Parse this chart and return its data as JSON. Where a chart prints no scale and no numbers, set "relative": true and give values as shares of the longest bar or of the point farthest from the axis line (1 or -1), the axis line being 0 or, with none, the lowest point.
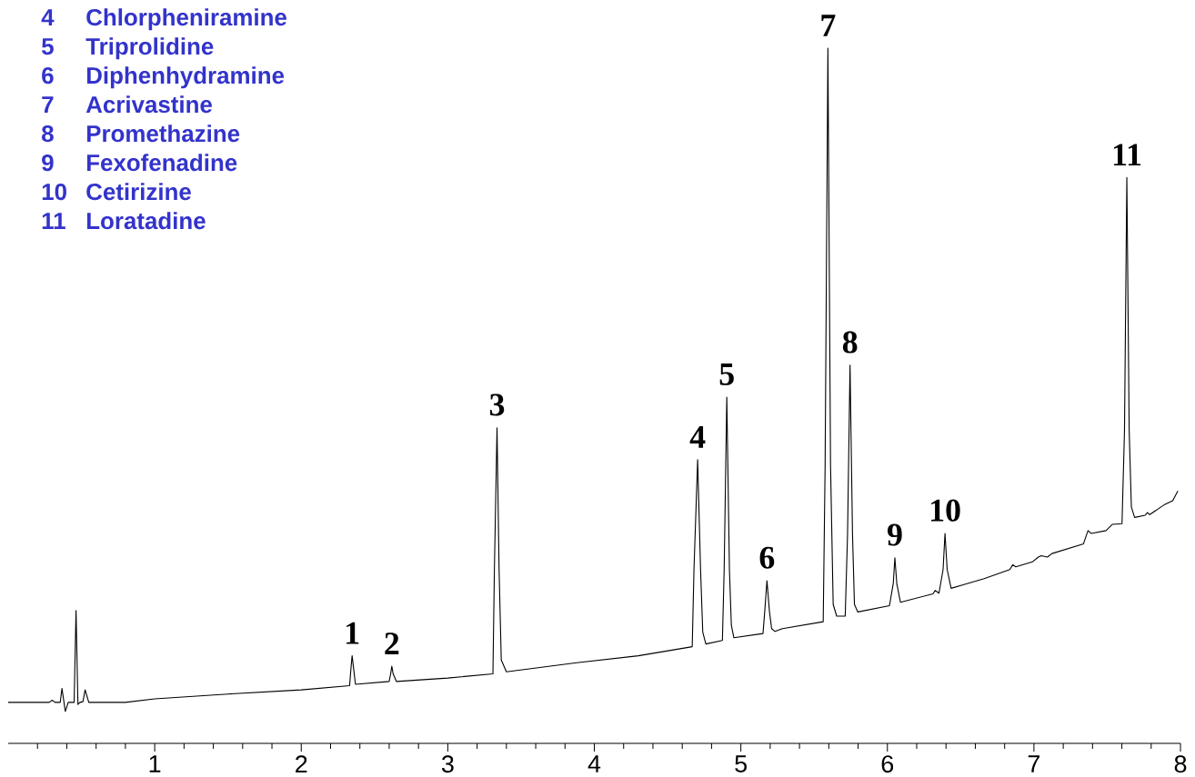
{
  "chart_data": {
    "type": "line",
    "relative": true,
    "color": "#000000",
    "xlim": [
      0,
      8
    ],
    "xticks": [
      {
        "value": 0.2,
        "label": null
      },
      {
        "value": 0.4,
        "label": null
      },
      {
        "value": 0.6,
        "label": null
      },
      {
        "value": 0.8,
        "label": null
      },
      1,
      {
        "value": 1.2,
        "label": null
      },
      {
        "value": 1.4,
        "label": null
      },
      {
        "value": 1.6,
        "label": null
      },
      {
        "value": 1.8,
        "label": null
      },
      2,
      {
        "value": 2.2,
        "label": null
      },
      {
        "value": 2.4,
        "label": null
      },
      {
        "value": 2.6,
        "label": null
      },
      {
        "value": 2.8,
        "label": null
      },
      3,
      {
        "value": 3.2,
        "label": null
      },
      {
        "value": 3.4,
        "label": null
      },
      {
        "value": 3.6,
        "label": null
      },
      {
        "value": 3.8,
        "label": null
      },
      4,
      {
        "value": 4.2,
        "label": null
      },
      {
        "value": 4.4,
        "label": null
      },
      {
        "value": 4.6,
        "label": null
      },
      {
        "value": 4.8,
        "label": null
      },
      5,
      {
        "value": 5.2,
        "label": null
      },
      {
        "value": 5.4,
        "label": null
      },
      {
        "value": 5.6,
        "label": null
      },
      {
        "value": 5.8,
        "label": null
      },
      6,
      {
        "value": 6.2,
        "label": null
      },
      {
        "value": 6.4,
        "label": null
      },
      {
        "value": 6.6,
        "label": null
      },
      {
        "value": 6.8,
        "label": null
      },
      7,
      {
        "value": 7.2,
        "label": null
      },
      {
        "value": 7.4,
        "label": null
      },
      {
        "value": 7.6,
        "label": null
      },
      {
        "value": 7.8,
        "label": null
      },
      8
    ],
    "x": [
      0.0,
      0.28,
      0.3,
      0.32,
      0.355,
      0.367,
      0.39,
      0.41,
      0.45,
      0.463,
      0.476,
      0.49,
      0.51,
      0.525,
      0.55,
      0.8,
      1.0,
      1.5,
      2.0,
      2.33,
      2.34,
      2.347,
      2.356,
      2.37,
      2.6,
      2.61,
      2.618,
      2.627,
      2.65,
      3.0,
      3.308,
      3.318,
      3.336,
      3.35,
      3.365,
      3.4,
      3.88,
      4.3,
      4.668,
      4.68,
      4.705,
      4.725,
      4.74,
      4.761,
      4.874,
      4.886,
      4.904,
      4.922,
      4.935,
      4.952,
      5.151,
      5.163,
      5.178,
      5.195,
      5.21,
      5.233,
      5.284,
      5.562,
      5.575,
      5.594,
      5.612,
      5.63,
      5.654,
      5.712,
      5.728,
      5.745,
      5.762,
      5.775,
      5.798,
      6.014,
      6.04,
      6.051,
      6.064,
      6.089,
      6.311,
      6.326,
      6.352,
      6.38,
      6.393,
      6.408,
      6.435,
      6.517,
      6.66,
      6.835,
      6.856,
      6.876,
      6.989,
      7.03,
      7.05,
      7.092,
      7.123,
      7.338,
      7.369,
      7.39,
      7.492,
      7.534,
      7.601,
      7.618,
      7.634,
      7.65,
      7.665,
      7.687,
      7.759,
      7.774,
      7.79,
      7.888,
      7.947,
      7.982
    ],
    "values": [
      0.059,
      0.059,
      0.062,
      0.059,
      0.059,
      0.079,
      0.046,
      0.059,
      0.059,
      0.191,
      0.056,
      0.059,
      0.06,
      0.077,
      0.059,
      0.059,
      0.064,
      0.071,
      0.077,
      0.083,
      0.11,
      0.126,
      0.11,
      0.085,
      0.089,
      0.1,
      0.111,
      0.1,
      0.089,
      0.094,
      0.1,
      0.25,
      0.454,
      0.25,
      0.12,
      0.103,
      0.116,
      0.126,
      0.139,
      0.25,
      0.408,
      0.25,
      0.16,
      0.143,
      0.148,
      0.25,
      0.498,
      0.25,
      0.17,
      0.152,
      0.158,
      0.19,
      0.234,
      0.19,
      0.165,
      0.161,
      0.165,
      0.175,
      0.4,
      1.0,
      0.4,
      0.2,
      0.183,
      0.183,
      0.3,
      0.544,
      0.3,
      0.2,
      0.189,
      0.198,
      0.23,
      0.267,
      0.23,
      0.203,
      0.215,
      0.22,
      0.216,
      0.25,
      0.302,
      0.25,
      0.223,
      0.228,
      0.237,
      0.25,
      0.257,
      0.254,
      0.261,
      0.268,
      0.27,
      0.268,
      0.273,
      0.287,
      0.306,
      0.302,
      0.306,
      0.315,
      0.316,
      0.45,
      0.814,
      0.45,
      0.34,
      0.325,
      0.328,
      0.332,
      0.329,
      0.343,
      0.349,
      0.363
    ],
    "annotations": [
      {
        "text": "1",
        "x": 2.347,
        "y": 0.126
      },
      {
        "text": "2",
        "x": 2.618,
        "y": 0.111
      },
      {
        "text": "3",
        "x": 3.336,
        "y": 0.454
      },
      {
        "text": "4",
        "x": 4.705,
        "y": 0.408
      },
      {
        "text": "5",
        "x": 4.904,
        "y": 0.498
      },
      {
        "text": "6",
        "x": 5.178,
        "y": 0.234
      },
      {
        "text": "7",
        "x": 5.594,
        "y": 1.0
      },
      {
        "text": "8",
        "x": 5.745,
        "y": 0.544
      },
      {
        "text": "9",
        "x": 6.051,
        "y": 0.267
      },
      {
        "text": "10",
        "x": 6.393,
        "y": 0.302
      },
      {
        "text": "11",
        "x": 7.634,
        "y": 0.814
      },
      "4",
      "Chlorpheniramine",
      "5",
      "Triprolidine",
      "6",
      "Diphenhydramine",
      "7",
      "Acrivastine",
      "8",
      "Promethazine",
      "9",
      "Fexofenadine",
      "10",
      "Cetirizine",
      "11",
      "Loratadine"
    ]
  }
}
